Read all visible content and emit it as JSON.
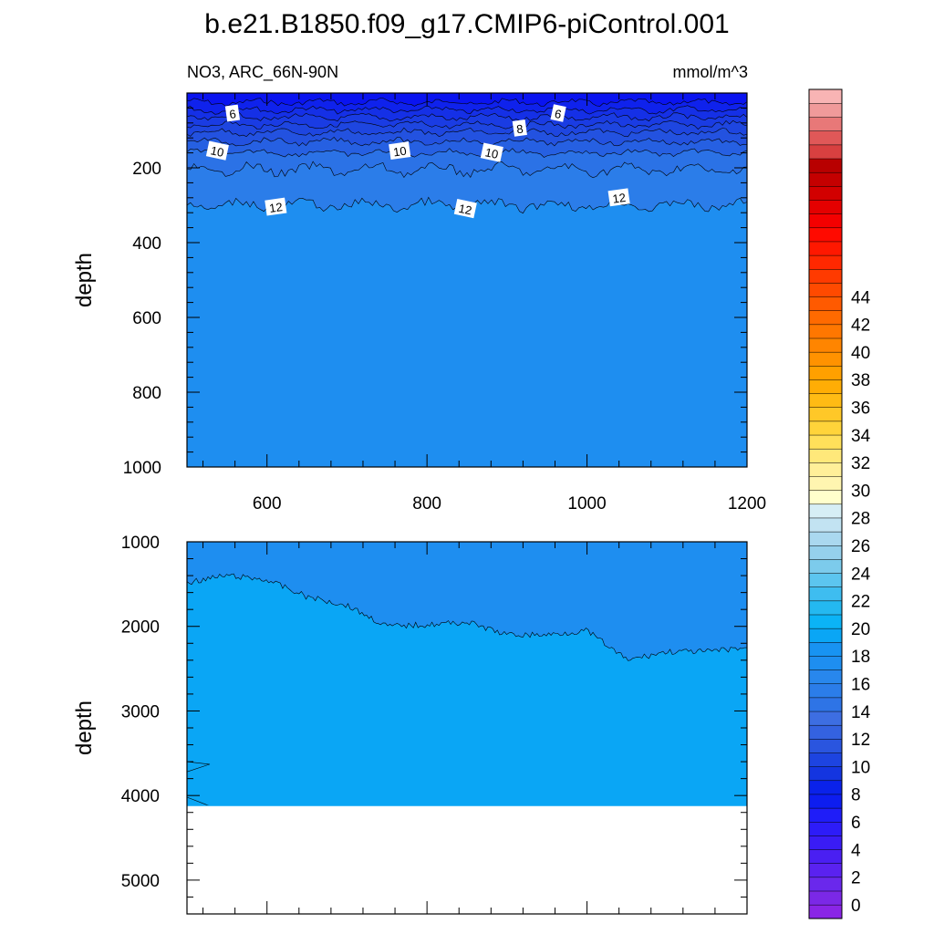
{
  "title": "b.e21.B1850.f09_g17.CMIP6-piControl.001",
  "subtitle_left": "NO3, ARC_66N-90N",
  "subtitle_right": "mmol/m^3",
  "colors": {
    "fill_surface": "#0a14f0",
    "fill_upper": "#1e4ee6",
    "fill_mid": "#2b7de9",
    "fill_deep": "#1e8ef0",
    "fill_bottom": "#0aa6f5"
  },
  "chart_data": [
    {
      "type": "heatmap",
      "panel": "upper",
      "ylabel": "depth",
      "xlim": [
        500,
        1200
      ],
      "ylim": [
        1000,
        0
      ],
      "xticks": [
        "600",
        "800",
        "1000",
        "1200"
      ],
      "yticks": [
        "200",
        "400",
        "600",
        "800",
        "1000"
      ],
      "contour_levels": [
        4,
        5,
        6,
        7,
        8,
        9,
        10,
        11,
        12
      ],
      "contour_depths": [
        {
          "level": 4,
          "depth": 25
        },
        {
          "level": 5,
          "depth": 45
        },
        {
          "level": 6,
          "depth": 65
        },
        {
          "level": 7,
          "depth": 85
        },
        {
          "level": 8,
          "depth": 105
        },
        {
          "level": 9,
          "depth": 130
        },
        {
          "level": 10,
          "depth": 160
        },
        {
          "level": 11,
          "depth": 205
        },
        {
          "level": 12,
          "depth": 300
        }
      ],
      "contour_labels": [
        {
          "text": "6",
          "x": 557,
          "depth": 55
        },
        {
          "text": "6",
          "x": 964,
          "depth": 55
        },
        {
          "text": "8",
          "x": 916,
          "depth": 95
        },
        {
          "text": "10",
          "x": 538,
          "depth": 155
        },
        {
          "text": "10",
          "x": 766,
          "depth": 155
        },
        {
          "text": "10",
          "x": 881,
          "depth": 160
        },
        {
          "text": "12",
          "x": 611,
          "depth": 305
        },
        {
          "text": "12",
          "x": 848,
          "depth": 310
        },
        {
          "text": "12",
          "x": 1040,
          "depth": 280
        }
      ]
    },
    {
      "type": "heatmap",
      "panel": "lower",
      "ylabel": "depth",
      "xlim": [
        500,
        1200
      ],
      "ylim": [
        5400,
        1000
      ],
      "yticks": [
        "1000",
        "2000",
        "3000",
        "4000",
        "5000"
      ],
      "data_bottom_depth": 4120,
      "contour_level": 13,
      "contour_profile": [
        {
          "x": 500,
          "depth": 1480
        },
        {
          "x": 550,
          "depth": 1400
        },
        {
          "x": 600,
          "depth": 1450
        },
        {
          "x": 650,
          "depth": 1650
        },
        {
          "x": 700,
          "depth": 1750
        },
        {
          "x": 750,
          "depth": 2000
        },
        {
          "x": 800,
          "depth": 1980
        },
        {
          "x": 850,
          "depth": 1950
        },
        {
          "x": 900,
          "depth": 2100
        },
        {
          "x": 950,
          "depth": 2100
        },
        {
          "x": 1000,
          "depth": 2050
        },
        {
          "x": 1050,
          "depth": 2400
        },
        {
          "x": 1100,
          "depth": 2300
        },
        {
          "x": 1150,
          "depth": 2300
        },
        {
          "x": 1200,
          "depth": 2250
        }
      ]
    }
  ],
  "colorbar": {
    "labels": [
      "0",
      "2",
      "4",
      "6",
      "8",
      "10",
      "12",
      "14",
      "16",
      "18",
      "20",
      "22",
      "24",
      "26",
      "28",
      "30",
      "32",
      "34",
      "36",
      "38",
      "40",
      "42",
      "44"
    ],
    "colors": [
      "#8a25e6",
      "#7b28e6",
      "#6a28ec",
      "#5a22f0",
      "#4a1ff2",
      "#3a1cf5",
      "#2d1cf8",
      "#1f1df8",
      "#0d1df0",
      "#0a22ea",
      "#1435e0",
      "#1d44e0",
      "#2a55df",
      "#3462e0",
      "#3d6ee2",
      "#2e74e6",
      "#2b7de9",
      "#2887ed",
      "#1e8ef0",
      "#1893f2",
      "#0aa6f5",
      "#0bb3f6",
      "#24b8f0",
      "#3ebdf0",
      "#5cc5ef",
      "#7ccbec",
      "#95d0ec",
      "#aad8ef",
      "#c2e3f2",
      "#d6eef5",
      "#ffffcc",
      "#fff5b0",
      "#ffef99",
      "#ffe87a",
      "#ffe05a",
      "#ffd43a",
      "#ffc828",
      "#ffbb14",
      "#ffad05",
      "#ffa000",
      "#ff9200",
      "#ff8500",
      "#ff7700",
      "#ff6a00",
      "#ff5a00",
      "#ff4a00",
      "#ff3a00",
      "#ff2800",
      "#ff1800",
      "#ff0a00",
      "#f40000",
      "#e40000",
      "#d20000",
      "#c40000",
      "#b80000",
      "#d84040",
      "#e05858",
      "#e87878",
      "#f09a9a",
      "#f8b4b4"
    ]
  }
}
